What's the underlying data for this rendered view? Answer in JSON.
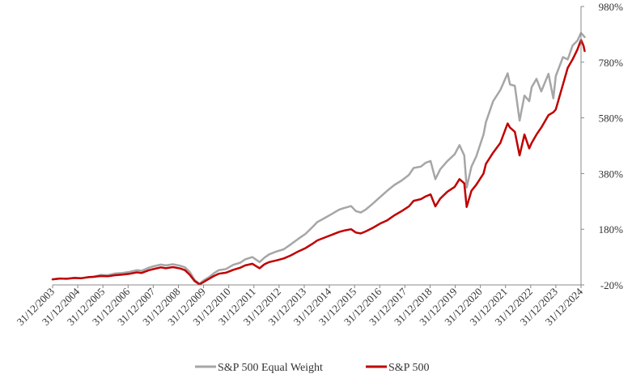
{
  "chart_data": {
    "type": "line",
    "title": "",
    "xlabel": "",
    "ylabel": "",
    "x": [
      "31/12/2003",
      "31/12/2004",
      "31/12/2005",
      "31/12/2006",
      "31/12/2007",
      "31/12/2008",
      "31/12/2009",
      "31/12/2010",
      "31/12/2011",
      "31/12/2012",
      "31/12/2013",
      "31/12/2014",
      "31/12/2015",
      "31/12/2016",
      "31/12/2017",
      "31/12/2018",
      "31/12/2019",
      "31/12/2020",
      "31/12/2021",
      "31/12/2022",
      "31/12/2023",
      "31/12/2024"
    ],
    "y_ticks": [
      "-20%",
      "180%",
      "380%",
      "580%",
      "780%",
      "980%"
    ],
    "y_tick_values": [
      -20,
      180,
      380,
      580,
      780,
      980
    ],
    "ylim": [
      -20,
      980
    ],
    "grid": false,
    "legend_position": "bottom-center",
    "series": [
      {
        "name": "S&P 500 Equal Weight",
        "color": "#a6a6a6",
        "values": [
          [
            2003.0,
            0
          ],
          [
            2003.3,
            3
          ],
          [
            2003.6,
            2
          ],
          [
            2003.9,
            5
          ],
          [
            2004.2,
            4
          ],
          [
            2004.5,
            8
          ],
          [
            2004.7,
            9
          ],
          [
            2005.0,
            16
          ],
          [
            2005.3,
            15
          ],
          [
            2005.6,
            21
          ],
          [
            2005.9,
            23
          ],
          [
            2006.2,
            27
          ],
          [
            2006.5,
            33
          ],
          [
            2006.7,
            31
          ],
          [
            2007.0,
            42
          ],
          [
            2007.2,
            47
          ],
          [
            2007.5,
            53
          ],
          [
            2007.7,
            50
          ],
          [
            2008.0,
            54
          ],
          [
            2008.3,
            49
          ],
          [
            2008.5,
            43
          ],
          [
            2008.7,
            26
          ],
          [
            2008.9,
            -2
          ],
          [
            2009.1,
            -16
          ],
          [
            2009.3,
            -2
          ],
          [
            2009.5,
            8
          ],
          [
            2009.7,
            22
          ],
          [
            2009.9,
            33
          ],
          [
            2010.2,
            37
          ],
          [
            2010.5,
            52
          ],
          [
            2010.8,
            60
          ],
          [
            2011.0,
            72
          ],
          [
            2011.3,
            80
          ],
          [
            2011.6,
            62
          ],
          [
            2011.8,
            78
          ],
          [
            2012.0,
            90
          ],
          [
            2012.3,
            100
          ],
          [
            2012.6,
            108
          ],
          [
            2012.9,
            126
          ],
          [
            2013.2,
            145
          ],
          [
            2013.5,
            163
          ],
          [
            2013.8,
            188
          ],
          [
            2014.0,
            206
          ],
          [
            2014.3,
            220
          ],
          [
            2014.6,
            235
          ],
          [
            2014.9,
            250
          ],
          [
            2015.1,
            256
          ],
          [
            2015.4,
            263
          ],
          [
            2015.6,
            245
          ],
          [
            2015.8,
            240
          ],
          [
            2016.0,
            250
          ],
          [
            2016.3,
            272
          ],
          [
            2016.6,
            295
          ],
          [
            2016.9,
            318
          ],
          [
            2017.2,
            339
          ],
          [
            2017.5,
            355
          ],
          [
            2017.8,
            375
          ],
          [
            2018.0,
            400
          ],
          [
            2018.3,
            405
          ],
          [
            2018.5,
            419
          ],
          [
            2018.7,
            425
          ],
          [
            2018.9,
            360
          ],
          [
            2019.1,
            395
          ],
          [
            2019.4,
            425
          ],
          [
            2019.7,
            449
          ],
          [
            2019.9,
            482
          ],
          [
            2020.1,
            445
          ],
          [
            2020.2,
            330
          ],
          [
            2020.4,
            405
          ],
          [
            2020.6,
            442
          ],
          [
            2020.9,
            520
          ],
          [
            2021.0,
            565
          ],
          [
            2021.3,
            640
          ],
          [
            2021.6,
            680
          ],
          [
            2021.9,
            740
          ],
          [
            2022.0,
            700
          ],
          [
            2022.2,
            695
          ],
          [
            2022.4,
            570
          ],
          [
            2022.6,
            660
          ],
          [
            2022.8,
            640
          ],
          [
            2022.9,
            690
          ],
          [
            2023.1,
            720
          ],
          [
            2023.3,
            675
          ],
          [
            2023.6,
            738
          ],
          [
            2023.8,
            650
          ],
          [
            2023.9,
            730
          ],
          [
            2024.2,
            798
          ],
          [
            2024.4,
            790
          ],
          [
            2024.6,
            840
          ],
          [
            2024.8,
            857
          ],
          [
            2024.95,
            885
          ],
          [
            2025.05,
            875
          ],
          [
            2025.1,
            870
          ]
        ]
      },
      {
        "name": "S&P 500",
        "color": "#c00000",
        "values": [
          [
            2003.0,
            0
          ],
          [
            2003.3,
            3
          ],
          [
            2003.6,
            2
          ],
          [
            2003.9,
            5
          ],
          [
            2004.2,
            4
          ],
          [
            2004.5,
            8
          ],
          [
            2004.7,
            9
          ],
          [
            2005.0,
            12
          ],
          [
            2005.3,
            11
          ],
          [
            2005.6,
            15
          ],
          [
            2005.9,
            17
          ],
          [
            2006.2,
            20
          ],
          [
            2006.5,
            25
          ],
          [
            2006.7,
            23
          ],
          [
            2007.0,
            33
          ],
          [
            2007.2,
            37
          ],
          [
            2007.5,
            43
          ],
          [
            2007.7,
            40
          ],
          [
            2008.0,
            44
          ],
          [
            2008.3,
            39
          ],
          [
            2008.5,
            33
          ],
          [
            2008.7,
            16
          ],
          [
            2008.9,
            -6
          ],
          [
            2009.1,
            -18
          ],
          [
            2009.3,
            -8
          ],
          [
            2009.5,
            2
          ],
          [
            2009.7,
            12
          ],
          [
            2009.9,
            20
          ],
          [
            2010.2,
            24
          ],
          [
            2010.5,
            34
          ],
          [
            2010.8,
            42
          ],
          [
            2011.0,
            50
          ],
          [
            2011.3,
            56
          ],
          [
            2011.6,
            40
          ],
          [
            2011.8,
            54
          ],
          [
            2012.0,
            62
          ],
          [
            2012.3,
            68
          ],
          [
            2012.6,
            75
          ],
          [
            2012.9,
            86
          ],
          [
            2013.2,
            100
          ],
          [
            2013.5,
            112
          ],
          [
            2013.8,
            128
          ],
          [
            2014.0,
            140
          ],
          [
            2014.3,
            150
          ],
          [
            2014.6,
            160
          ],
          [
            2014.9,
            170
          ],
          [
            2015.1,
            175
          ],
          [
            2015.4,
            180
          ],
          [
            2015.6,
            168
          ],
          [
            2015.8,
            165
          ],
          [
            2016.0,
            172
          ],
          [
            2016.3,
            185
          ],
          [
            2016.6,
            200
          ],
          [
            2016.9,
            212
          ],
          [
            2017.2,
            230
          ],
          [
            2017.5,
            245
          ],
          [
            2017.8,
            262
          ],
          [
            2018.0,
            282
          ],
          [
            2018.3,
            288
          ],
          [
            2018.5,
            298
          ],
          [
            2018.7,
            305
          ],
          [
            2018.9,
            262
          ],
          [
            2019.1,
            290
          ],
          [
            2019.4,
            315
          ],
          [
            2019.7,
            332
          ],
          [
            2019.9,
            360
          ],
          [
            2020.1,
            345
          ],
          [
            2020.2,
            260
          ],
          [
            2020.4,
            318
          ],
          [
            2020.6,
            340
          ],
          [
            2020.9,
            380
          ],
          [
            2021.0,
            415
          ],
          [
            2021.3,
            455
          ],
          [
            2021.6,
            490
          ],
          [
            2021.9,
            560
          ],
          [
            2022.0,
            545
          ],
          [
            2022.2,
            530
          ],
          [
            2022.4,
            445
          ],
          [
            2022.6,
            520
          ],
          [
            2022.8,
            470
          ],
          [
            2022.9,
            490
          ],
          [
            2023.1,
            520
          ],
          [
            2023.3,
            545
          ],
          [
            2023.6,
            590
          ],
          [
            2023.8,
            600
          ],
          [
            2023.9,
            610
          ],
          [
            2024.2,
            700
          ],
          [
            2024.4,
            760
          ],
          [
            2024.6,
            790
          ],
          [
            2024.8,
            825
          ],
          [
            2024.95,
            860
          ],
          [
            2025.05,
            840
          ],
          [
            2025.1,
            820
          ]
        ]
      }
    ]
  }
}
